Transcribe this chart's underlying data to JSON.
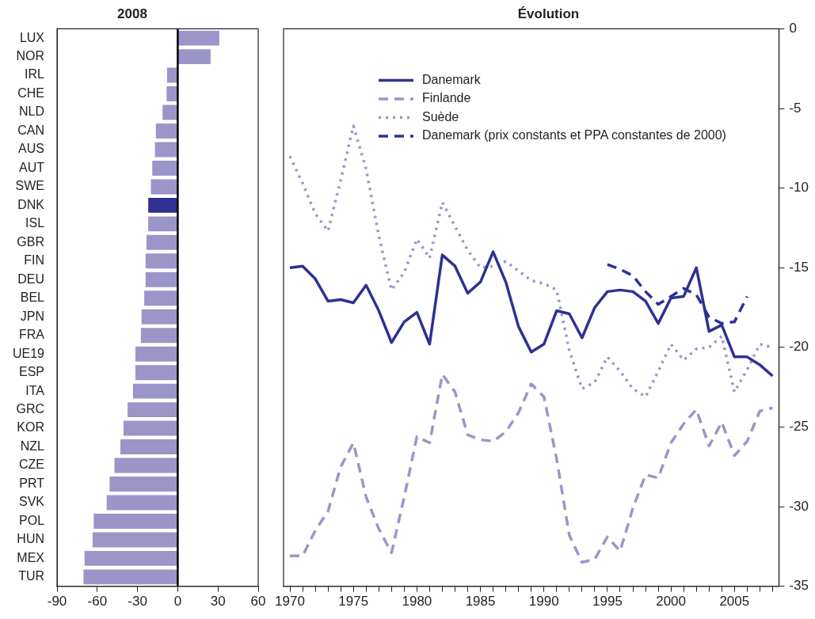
{
  "chart_data": [
    {
      "type": "bar",
      "orientation": "horizontal",
      "title": "2008",
      "categories": [
        "LUX",
        "NOR",
        "IRL",
        "CHE",
        "NLD",
        "CAN",
        "AUS",
        "AUT",
        "SWE",
        "DNK",
        "ISL",
        "GBR",
        "FIN",
        "DEU",
        "BEL",
        "JPN",
        "FRA",
        "UE19",
        "ESP",
        "ITA",
        "GRC",
        "KOR",
        "NZL",
        "CZE",
        "PRT",
        "SVK",
        "POL",
        "HUN",
        "MEX",
        "TUR"
      ],
      "values": [
        31,
        24.5,
        -8,
        -8.3,
        -11.3,
        -16.3,
        -17,
        -19,
        -20,
        -22,
        -22,
        -23.3,
        -24,
        -24,
        -25,
        -27,
        -27.5,
        -31.6,
        -31.6,
        -33.4,
        -37.4,
        -40.4,
        -42.8,
        -47.2,
        -50.8,
        -53,
        -62.7,
        -63.5,
        -69.5,
        -70.3
      ],
      "colors": [
        "#9b95c9",
        "#9b95c9",
        "#9b95c9",
        "#9b95c9",
        "#9b95c9",
        "#9b95c9",
        "#9b95c9",
        "#9b95c9",
        "#9b95c9",
        "#2e3192",
        "#9b95c9",
        "#9b95c9",
        "#9b95c9",
        "#9b95c9",
        "#9b95c9",
        "#9b95c9",
        "#9b95c9",
        "#9b95c9",
        "#9b95c9",
        "#9b95c9",
        "#9b95c9",
        "#9b95c9",
        "#9b95c9",
        "#9b95c9",
        "#9b95c9",
        "#9b95c9",
        "#9b95c9",
        "#9b95c9",
        "#9b95c9",
        "#9b95c9"
      ],
      "xlim": [
        -90,
        60
      ],
      "xticks": [
        -90,
        -60,
        -30,
        0,
        30,
        60
      ],
      "ref_lines": [
        {
          "axis": "x",
          "value": 0,
          "color": "#000000"
        }
      ],
      "grid": false,
      "legend": false
    },
    {
      "type": "line",
      "title": "Évolution",
      "x": [
        1970,
        1971,
        1972,
        1973,
        1974,
        1975,
        1976,
        1977,
        1978,
        1979,
        1980,
        1981,
        1982,
        1983,
        1984,
        1985,
        1986,
        1987,
        1988,
        1989,
        1990,
        1991,
        1992,
        1993,
        1994,
        1995,
        1996,
        1997,
        1998,
        1999,
        2000,
        2001,
        2002,
        2003,
        2004,
        2005,
        2006,
        2007,
        2008
      ],
      "series": [
        {
          "name": "Danemark",
          "color": "#2e3192",
          "line_style": "solid",
          "values": [
            -15.0,
            -14.9,
            -15.7,
            -17.1,
            -17.0,
            -17.2,
            -16.1,
            -17.7,
            -19.7,
            -18.4,
            -17.8,
            -19.8,
            -14.2,
            -14.9,
            -16.6,
            -15.9,
            -14.0,
            -15.9,
            -18.7,
            -20.3,
            -19.8,
            -17.7,
            -17.9,
            -19.4,
            -17.5,
            -16.5,
            -16.4,
            -16.5,
            -17.1,
            -18.5,
            -16.9,
            -16.8,
            -15.0,
            -19.0,
            -18.6,
            -20.6,
            -20.6,
            -21.1,
            -21.8
          ]
        },
        {
          "name": "Finlande",
          "color": "#9b95c9",
          "line_style": "dashed",
          "values": [
            -33.1,
            -33.1,
            -31.5,
            -30.3,
            -27.5,
            -26.0,
            -29.4,
            -31.4,
            -32.9,
            -29.4,
            -25.6,
            -26.0,
            -21.7,
            -22.8,
            -25.5,
            -25.8,
            -25.9,
            -25.3,
            -24.1,
            -22.3,
            -23.1,
            -27.0,
            -31.8,
            -33.5,
            -33.3,
            -31.9,
            -32.8,
            -30.1,
            -28.0,
            -28.2,
            -26.0,
            -24.8,
            -23.9,
            -26.2,
            -24.7,
            -26.8,
            -25.9,
            -24.0,
            -23.8
          ]
        },
        {
          "name": "Suède",
          "color": "#9b95c9",
          "line_style": "dotted",
          "values": [
            -8.0,
            -9.7,
            -11.6,
            -12.7,
            -9.5,
            -6.1,
            -8.8,
            -13.0,
            -16.4,
            -15.3,
            -13.2,
            -14.4,
            -10.9,
            -12.4,
            -13.9,
            -15.0,
            -14.9,
            -14.6,
            -15.2,
            -15.8,
            -16.0,
            -16.4,
            -20.2,
            -22.6,
            -22.2,
            -20.6,
            -21.5,
            -22.6,
            -23.1,
            -21.5,
            -19.8,
            -20.8,
            -20.1,
            -20.0,
            -19.3,
            -22.8,
            -21.4,
            -19.8,
            -20.0
          ]
        },
        {
          "name": "Danemark (prix constants et PPA constantes de 2000)",
          "color": "#2e3192",
          "line_style": "dashed",
          "x": [
            1995,
            1996,
            1997,
            1998,
            1999,
            2000,
            2001,
            2002,
            2003,
            2004,
            2005,
            2006
          ],
          "values": [
            -14.8,
            -15.1,
            -15.5,
            -16.5,
            -17.3,
            -16.8,
            -16.3,
            -16.7,
            -18.1,
            -18.5,
            -18.4,
            -16.8
          ]
        }
      ],
      "xlim": [
        1969.5,
        2008.5
      ],
      "xticks": [
        1970,
        {
          "value": 1971,
          "label": null
        },
        {
          "value": 1972,
          "label": null
        },
        {
          "value": 1973,
          "label": null
        },
        {
          "value": 1974,
          "label": null
        },
        1975,
        {
          "value": 1976,
          "label": null
        },
        {
          "value": 1977,
          "label": null
        },
        {
          "value": 1978,
          "label": null
        },
        {
          "value": 1979,
          "label": null
        },
        1980,
        {
          "value": 1981,
          "label": null
        },
        {
          "value": 1982,
          "label": null
        },
        {
          "value": 1983,
          "label": null
        },
        {
          "value": 1984,
          "label": null
        },
        1985,
        {
          "value": 1986,
          "label": null
        },
        {
          "value": 1987,
          "label": null
        },
        {
          "value": 1988,
          "label": null
        },
        {
          "value": 1989,
          "label": null
        },
        1990,
        {
          "value": 1991,
          "label": null
        },
        {
          "value": 1992,
          "label": null
        },
        {
          "value": 1993,
          "label": null
        },
        {
          "value": 1994,
          "label": null
        },
        1995,
        {
          "value": 1996,
          "label": null
        },
        {
          "value": 1997,
          "label": null
        },
        {
          "value": 1998,
          "label": null
        },
        {
          "value": 1999,
          "label": null
        },
        2000,
        {
          "value": 2001,
          "label": null
        },
        {
          "value": 2002,
          "label": null
        },
        {
          "value": 2003,
          "label": null
        },
        {
          "value": 2004,
          "label": null
        },
        2005,
        {
          "value": 2006,
          "label": null
        },
        {
          "value": 2007,
          "label": null
        },
        {
          "value": 2008,
          "label": null
        }
      ],
      "ylim": [
        -35,
        0
      ],
      "yticks": [
        0,
        -5,
        -10,
        -15,
        -20,
        -25,
        -30,
        -35
      ],
      "grid": false,
      "legend": "top left",
      "marker": "none"
    }
  ]
}
